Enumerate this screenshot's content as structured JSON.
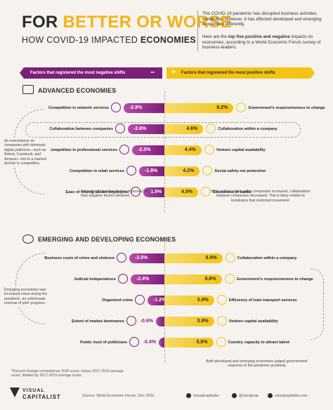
{
  "header": {
    "title_line1_part1": "FOR ",
    "title_line1_part2": "BETTER OR WORSE",
    "title_line2_part1": "HOW COVID-19 IMPACTED ",
    "title_line2_part2": "ECONOMIES",
    "intro_p1": "The COVID-19 pandemic has disrupted business activities worldwide. However, it has affected developed and emerging economies differently.",
    "intro_p2_part1": "Here are the ",
    "intro_p2_bold": "top five positive and negative",
    "intro_p2_part2": " impacts on economies, according to a World Economic Forum survey of business leaders."
  },
  "legend": {
    "negative_label": "Factors that registered the most negative shifts",
    "negative_sign": "–",
    "positive_sign": "+",
    "positive_label": "Factors that registered the most positive shifts"
  },
  "colors": {
    "negative": "#7b1f7a",
    "negative_light": "#b84aa8",
    "positive": "#f3c316",
    "positive_light": "#f7db6a",
    "dark": "#2b2b2b",
    "background": "#f6f3ee"
  },
  "notes": {
    "advanced_left": "An overreliance on companies with dominant digital platforms—such as Airbnb, Facebook, and Amazon—led to a marked decline in competition.",
    "advanced_center": "Interestingly, positive factors improved more than negative factors declined.",
    "advanced_right": "While collaboration within companies increased, collaboration between companies decreased. This is likely related to lockdowns that restricted movement.",
    "emerging_left": "Emerging economies saw increased crime during the pandemic, an unfortunate reversal of prior progress.",
    "emerging_right": "Both developed and emerging economies judged governments' response to the pandemic positively.",
    "footnote": "*Percent change computed as 2020 score, minus 2017-2019 average score, divided by 2017-2019 average score."
  },
  "footer": {
    "brand_line1": "VISUAL",
    "brand_line2": "CAPITALIST",
    "source": "Source: World Economic Forum, Dec 2020",
    "social1": "/visualcapitalist",
    "social2": "@visualcap",
    "social3": "visualcapitalist.com"
  },
  "icons": [
    "network-icon",
    "company-icon",
    "professional-icon",
    "retail-icon",
    "employees-icon",
    "government-icon",
    "collaboration-icon",
    "venture-icon",
    "safety-net-icon",
    "bank-icon",
    "crime-icon",
    "judiciary-icon",
    "dominance-icon",
    "politicians-icon",
    "train-icon",
    "talent-icon"
  ],
  "chart_data": [
    {
      "type": "bar",
      "title": "ADVANCED ECONOMIES",
      "negative": {
        "categories": [
          "Competition in network services",
          "Collaboration between companies",
          "Competition in professional services",
          "Competition in retail services",
          "Ease of finding skilled employees"
        ],
        "values": [
          -2.9,
          -2.6,
          -2.3,
          -1.8,
          -1.5
        ],
        "labels": [
          "-2.9%",
          "-2.6%",
          "-2.3%",
          "-1.8%",
          "-1.5%"
        ]
      },
      "positive": {
        "categories": [
          "Government's responsiveness to change",
          "Collaboration within a company",
          "Venture capital availability",
          "Social safety net protection",
          "Soundness of banks"
        ],
        "values": [
          8.2,
          4.6,
          4.4,
          4.2,
          4.0
        ],
        "labels": [
          "8.2%",
          "4.6%",
          "4.4%",
          "4.2%",
          "4.0%"
        ]
      }
    },
    {
      "type": "bar",
      "title": "EMERGING AND DEVELOPING ECONOMIES",
      "negative": {
        "categories": [
          "Business costs of crime and violence",
          "Judicial independence",
          "Organized crime",
          "Extent of market dominance",
          "Public trust of politicians"
        ],
        "values": [
          -2.5,
          -2.4,
          -1.2,
          -0.6,
          -0.4
        ],
        "labels": [
          "-2.5%",
          "-2.4%",
          "-1.2%",
          "-0.6%",
          "-0.4%"
        ]
      },
      "positive": {
        "categories": [
          "Collaboration within a company",
          "Government's responsiveness to change",
          "Efficiency of train transport services",
          "Venture capital availability",
          "Country capacity to attract talent"
        ],
        "values": [
          6.9,
          6.8,
          5.9,
          5.9,
          5.8
        ],
        "labels": [
          "6.9%",
          "6.8%",
          "5.9%",
          "5.9%",
          "5.8%"
        ]
      }
    }
  ]
}
